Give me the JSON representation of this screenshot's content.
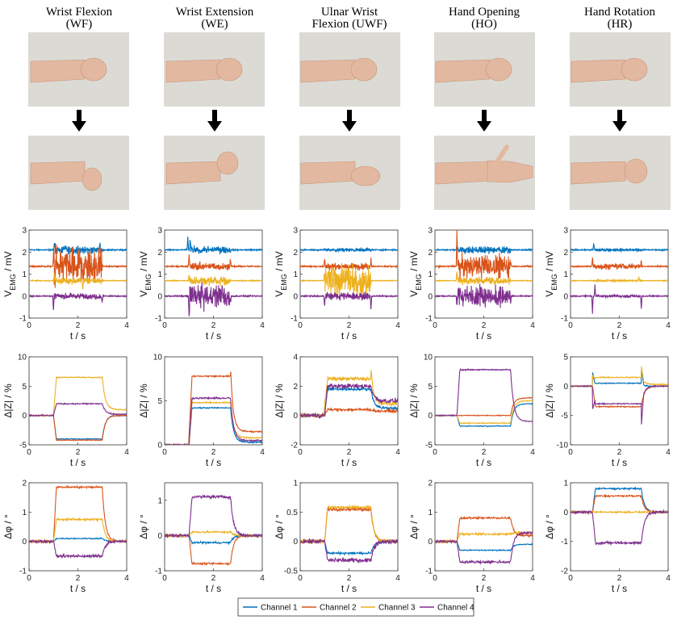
{
  "figure": {
    "columns": [
      {
        "title_line1": "Wrist Flexion",
        "title_line2": "(WF)"
      },
      {
        "title_line1": "Wrist Extension",
        "title_line2": "(WE)"
      },
      {
        "title_line1": "Ulnar Wrist",
        "title_line2": "Flexion (UWF)"
      },
      {
        "title_line1": "Hand Opening",
        "title_line2": "(HO)"
      },
      {
        "title_line1": "Hand Rotation",
        "title_line2": "(HR)"
      }
    ],
    "colors": {
      "Channel 1": "#0072BD",
      "Channel 2": "#D95319",
      "Channel 3": "#EDB120",
      "Channel 4": "#7E2F8E"
    },
    "skin_color": "#e2b9a0",
    "background_photo_color": "#dcdad5",
    "arrow_icon": "down-arrow-icon"
  },
  "chart_data": [
    {
      "type": "line",
      "row": "emg",
      "ylabel_main": "V",
      "ylabel_sub": "EMG",
      "ylabel_tail": " / mV",
      "xlabel": "t / s",
      "xlim": [
        0,
        4
      ],
      "xticks": [
        0,
        2,
        4
      ],
      "panels": [
        {
          "ylim": [
            -1,
            3
          ],
          "yticks": [
            -1,
            0,
            1,
            2,
            3
          ],
          "active": [
            1.0,
            3.0
          ],
          "series": [
            {
              "name": "Channel 1",
              "baseline": 2.1,
              "noise": 0.03,
              "burst_amp": 0.12,
              "spikes": [
                [
                  1.05,
                  0.35
                ],
                [
                  2.9,
                  0.25
                ]
              ]
            },
            {
              "name": "Channel 2",
              "baseline": 1.35,
              "noise": 0.03,
              "burst_amp": 0.55,
              "spikes": [
                [
                  1.0,
                  0.4
                ]
              ]
            },
            {
              "name": "Channel 3",
              "baseline": 0.7,
              "noise": 0.02,
              "burst_amp": 0.1,
              "spikes": [
                [
                  1.05,
                  0.3
                ],
                [
                  2.2,
                  -0.3
                ]
              ]
            },
            {
              "name": "Channel 4",
              "baseline": 0.0,
              "noise": 0.03,
              "burst_amp": 0.08,
              "spikes": [
                [
                  1.0,
                  -0.7
                ],
                [
                  3.0,
                  -0.3
                ]
              ]
            }
          ]
        },
        {
          "ylim": [
            -1,
            3
          ],
          "yticks": [
            -1,
            0,
            1,
            2,
            3
          ],
          "active": [
            1.0,
            2.7
          ],
          "series": [
            {
              "name": "Channel 1",
              "baseline": 2.1,
              "noise": 0.03,
              "burst_amp": 0.1,
              "spikes": [
                [
                  0.95,
                  0.6
                ],
                [
                  1.05,
                  0.5
                ]
              ]
            },
            {
              "name": "Channel 2",
              "baseline": 1.35,
              "noise": 0.03,
              "burst_amp": 0.12,
              "spikes": [
                [
                  1.0,
                  0.5
                ],
                [
                  2.7,
                  0.3
                ]
              ]
            },
            {
              "name": "Channel 3",
              "baseline": 0.7,
              "noise": 0.02,
              "burst_amp": 0.15,
              "spikes": [
                [
                  1.0,
                  0.3
                ]
              ]
            },
            {
              "name": "Channel 4",
              "baseline": 0.0,
              "noise": 0.03,
              "burst_amp": 0.35,
              "spikes": [
                [
                  1.0,
                  -0.9
                ],
                [
                  2.7,
                  -0.4
                ]
              ]
            }
          ]
        },
        {
          "ylim": [
            -1,
            3
          ],
          "yticks": [
            -1,
            0,
            1,
            2,
            3
          ],
          "active": [
            1.0,
            2.9
          ],
          "series": [
            {
              "name": "Channel 1",
              "baseline": 2.1,
              "noise": 0.03,
              "burst_amp": 0.05,
              "spikes": []
            },
            {
              "name": "Channel 2",
              "baseline": 1.35,
              "noise": 0.03,
              "burst_amp": 0.1,
              "spikes": [
                [
                  1.0,
                  0.3
                ],
                [
                  2.9,
                  0.3
                ]
              ]
            },
            {
              "name": "Channel 3",
              "baseline": 0.7,
              "noise": 0.02,
              "burst_amp": 0.45,
              "spikes": [
                [
                  1.0,
                  0.5
                ]
              ]
            },
            {
              "name": "Channel 4",
              "baseline": 0.0,
              "noise": 0.03,
              "burst_amp": 0.12,
              "spikes": [
                [
                  1.0,
                  -0.5
                ],
                [
                  2.9,
                  -0.6
                ]
              ]
            }
          ]
        },
        {
          "ylim": [
            -1,
            3
          ],
          "yticks": [
            -1,
            0,
            1,
            2,
            3
          ],
          "active": [
            0.9,
            3.1
          ],
          "series": [
            {
              "name": "Channel 1",
              "baseline": 2.1,
              "noise": 0.03,
              "burst_amp": 0.1,
              "spikes": [
                [
                  0.9,
                  0.3
                ]
              ]
            },
            {
              "name": "Channel 2",
              "baseline": 1.35,
              "noise": 0.03,
              "burst_amp": 0.35,
              "spikes": [
                [
                  0.9,
                  1.5
                ],
                [
                  3.1,
                  0.3
                ]
              ]
            },
            {
              "name": "Channel 3",
              "baseline": 0.7,
              "noise": 0.02,
              "burst_amp": 0.12,
              "spikes": [
                [
                  0.9,
                  0.5
                ]
              ]
            },
            {
              "name": "Channel 4",
              "baseline": 0.0,
              "noise": 0.03,
              "burst_amp": 0.3,
              "spikes": [
                [
                  0.9,
                  -0.6
                ],
                [
                  3.1,
                  -0.4
                ]
              ]
            }
          ]
        },
        {
          "ylim": [
            -1,
            3
          ],
          "yticks": [
            -1,
            0,
            1,
            2,
            3
          ],
          "active": [
            0.9,
            2.9
          ],
          "series": [
            {
              "name": "Channel 1",
              "baseline": 2.1,
              "noise": 0.03,
              "burst_amp": 0.04,
              "spikes": [
                [
                  0.95,
                  0.3
                ]
              ]
            },
            {
              "name": "Channel 2",
              "baseline": 1.35,
              "noise": 0.03,
              "burst_amp": 0.08,
              "spikes": [
                [
                  0.9,
                  0.4
                ],
                [
                  2.9,
                  0.2
                ]
              ]
            },
            {
              "name": "Channel 3",
              "baseline": 0.7,
              "noise": 0.02,
              "burst_amp": 0.03,
              "spikes": [
                [
                  2.8,
                  0.15
                ]
              ]
            },
            {
              "name": "Channel 4",
              "baseline": 0.0,
              "noise": 0.03,
              "burst_amp": 0.03,
              "spikes": [
                [
                  0.9,
                  -0.8
                ],
                [
                  1.0,
                  0.5
                ],
                [
                  2.9,
                  -0.6
                ]
              ]
            }
          ]
        }
      ]
    },
    {
      "type": "line",
      "row": "impedance_magnitude",
      "ylabel": "Δ|Z| / %",
      "xlabel": "t / s",
      "xlim": [
        0,
        4
      ],
      "xticks": [
        0,
        2,
        4
      ],
      "panels": [
        {
          "ylim": [
            -5,
            10
          ],
          "yticks": [
            -5,
            0,
            5,
            10
          ],
          "active": [
            1.0,
            3.0
          ],
          "series": [
            {
              "name": "Channel 1",
              "level": -4.0,
              "noise": 0.08,
              "tail": 0.0
            },
            {
              "name": "Channel 2",
              "level": -4.2,
              "noise": 0.08,
              "tail": 0.0
            },
            {
              "name": "Channel 3",
              "level": 6.5,
              "noise": 0.1,
              "tail": 1.0
            },
            {
              "name": "Channel 4",
              "level": 2.0,
              "noise": 0.12,
              "tail": 0.2
            }
          ]
        },
        {
          "ylim": [
            0,
            10
          ],
          "yticks": [
            0,
            5,
            10
          ],
          "active": [
            1.0,
            2.7
          ],
          "series": [
            {
              "name": "Channel 1",
              "level": 4.2,
              "noise": 0.08,
              "tail": 0.3
            },
            {
              "name": "Channel 2",
              "level": 7.8,
              "noise": 0.08,
              "tail": 1.5,
              "overshoot": 1.0
            },
            {
              "name": "Channel 3",
              "level": 4.8,
              "noise": 0.08,
              "tail": 0.8
            },
            {
              "name": "Channel 4",
              "level": 5.3,
              "noise": 0.1,
              "tail": 0.5
            }
          ]
        },
        {
          "ylim": [
            -2,
            4
          ],
          "yticks": [
            -2,
            0,
            2,
            4
          ],
          "active": [
            1.0,
            2.9
          ],
          "series": [
            {
              "name": "Channel 1",
              "level": 1.8,
              "noise": 0.1,
              "tail": 0.5
            },
            {
              "name": "Channel 2",
              "level": 0.4,
              "noise": 0.1,
              "tail": 0.3
            },
            {
              "name": "Channel 3",
              "level": 2.5,
              "noise": 0.15,
              "tail": 0.8,
              "overshoot": 0.8
            },
            {
              "name": "Channel 4",
              "level": 2.0,
              "noise": 0.18,
              "tail": 1.0
            }
          ]
        },
        {
          "ylim": [
            -5,
            10
          ],
          "yticks": [
            -5,
            0,
            5,
            10
          ],
          "active": [
            0.9,
            3.1
          ],
          "series": [
            {
              "name": "Channel 1",
              "level": -1.8,
              "noise": 0.08,
              "tail": 2.0
            },
            {
              "name": "Channel 2",
              "level": 0.0,
              "noise": 0.08,
              "tail": 3.0
            },
            {
              "name": "Channel 3",
              "level": -1.3,
              "noise": 0.08,
              "tail": 2.5
            },
            {
              "name": "Channel 4",
              "level": 7.8,
              "noise": 0.1,
              "tail": -1.0
            }
          ]
        },
        {
          "ylim": [
            -10,
            5
          ],
          "yticks": [
            -10,
            -5,
            0,
            5
          ],
          "active": [
            0.9,
            2.9
          ],
          "series": [
            {
              "name": "Channel 1",
              "level": 0.5,
              "noise": 0.1,
              "tail": 0.0,
              "overshoot": 2.5
            },
            {
              "name": "Channel 2",
              "level": -3.5,
              "noise": 0.1,
              "tail": 0.0
            },
            {
              "name": "Channel 3",
              "level": 1.5,
              "noise": 0.1,
              "tail": 0.3,
              "overshoot": 2.0
            },
            {
              "name": "Channel 4",
              "level": -3.0,
              "noise": 0.1,
              "tail": 0.0,
              "overshoot": -4.0
            }
          ]
        }
      ]
    },
    {
      "type": "line",
      "row": "phase",
      "ylabel": "Δφ / °",
      "xlabel": "t / s",
      "xlim": [
        0,
        4
      ],
      "xticks": [
        0,
        2,
        4
      ],
      "panels": [
        {
          "ylim": [
            -1,
            2
          ],
          "yticks": [
            -1,
            0,
            1,
            2
          ],
          "active": [
            1.0,
            3.0
          ],
          "series": [
            {
              "name": "Channel 1",
              "level": 0.1,
              "noise": 0.02,
              "tail": 0.0
            },
            {
              "name": "Channel 2",
              "level": 1.85,
              "noise": 0.04,
              "tail": 0.0
            },
            {
              "name": "Channel 3",
              "level": 0.75,
              "noise": 0.04,
              "tail": 0.0
            },
            {
              "name": "Channel 4",
              "level": -0.5,
              "noise": 0.05,
              "tail": 0.0
            }
          ]
        },
        {
          "ylim": [
            -1,
            1.5
          ],
          "yticks": [
            -1,
            0,
            1
          ],
          "active": [
            1.0,
            2.7
          ],
          "series": [
            {
              "name": "Channel 1",
              "level": -0.2,
              "noise": 0.03,
              "tail": 0.0
            },
            {
              "name": "Channel 2",
              "level": -0.8,
              "noise": 0.03,
              "tail": 0.0
            },
            {
              "name": "Channel 3",
              "level": 0.1,
              "noise": 0.03,
              "tail": 0.0
            },
            {
              "name": "Channel 4",
              "level": 1.1,
              "noise": 0.05,
              "tail": 0.0
            }
          ]
        },
        {
          "ylim": [
            -0.5,
            1
          ],
          "yticks": [
            -0.5,
            0,
            0.5,
            1
          ],
          "active": [
            1.0,
            2.9
          ],
          "series": [
            {
              "name": "Channel 1",
              "level": -0.2,
              "noise": 0.02,
              "tail": 0.0
            },
            {
              "name": "Channel 2",
              "level": 0.55,
              "noise": 0.03,
              "tail": 0.0
            },
            {
              "name": "Channel 3",
              "level": 0.58,
              "noise": 0.03,
              "tail": 0.0
            },
            {
              "name": "Channel 4",
              "level": -0.32,
              "noise": 0.04,
              "tail": 0.0
            }
          ]
        },
        {
          "ylim": [
            -1,
            2
          ],
          "yticks": [
            -1,
            0,
            1,
            2
          ],
          "active": [
            0.9,
            3.1
          ],
          "series": [
            {
              "name": "Channel 1",
              "level": -0.3,
              "noise": 0.02,
              "tail": -0.1
            },
            {
              "name": "Channel 2",
              "level": 0.8,
              "noise": 0.04,
              "tail": 0.2
            },
            {
              "name": "Channel 3",
              "level": 0.25,
              "noise": 0.04,
              "tail": 0.3
            },
            {
              "name": "Channel 4",
              "level": -0.7,
              "noise": 0.05,
              "tail": 0.3
            }
          ]
        },
        {
          "ylim": [
            -2,
            1
          ],
          "yticks": [
            -2,
            -1,
            0,
            1
          ],
          "active": [
            0.9,
            2.9
          ],
          "series": [
            {
              "name": "Channel 1",
              "level": 0.8,
              "noise": 0.03,
              "tail": 0.0
            },
            {
              "name": "Channel 2",
              "level": 0.55,
              "noise": 0.03,
              "tail": 0.0
            },
            {
              "name": "Channel 3",
              "level": 0.0,
              "noise": 0.03,
              "tail": 0.0
            },
            {
              "name": "Channel 4",
              "level": -1.05,
              "noise": 0.05,
              "tail": 0.0
            }
          ]
        }
      ]
    }
  ],
  "legend": {
    "position": "bottom-center",
    "entries": [
      "Channel 1",
      "Channel 2",
      "Channel 3",
      "Channel 4"
    ]
  }
}
